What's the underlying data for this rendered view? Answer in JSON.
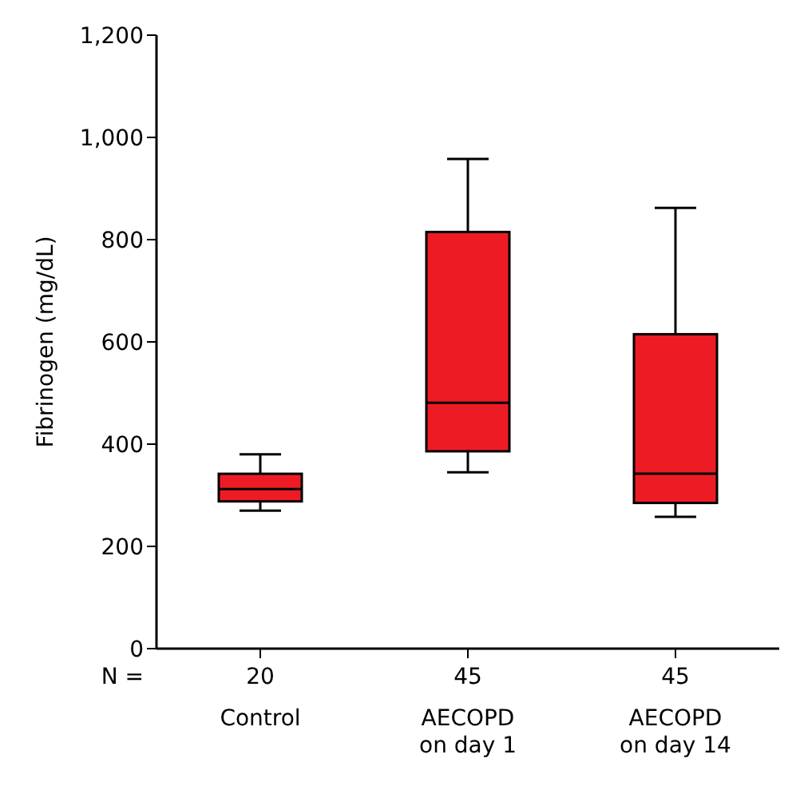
{
  "chart_data": {
    "type": "box",
    "ylabel": "Fibrinogen (mg/dL)",
    "categories": [
      "Control",
      "AECOPD on day 1",
      "AECOPD on day 14"
    ],
    "boxes": [
      {
        "low": 270,
        "q1": 288,
        "median": 312,
        "q3": 342,
        "high": 380
      },
      {
        "low": 345,
        "q1": 386,
        "median": 481,
        "q3": 815,
        "high": 958
      },
      {
        "low": 258,
        "q1": 285,
        "median": 342,
        "q3": 615,
        "high": 862
      }
    ],
    "color": "#ed1c24",
    "ylim": [
      0,
      1200
    ],
    "yticks": [
      {
        "value": 0,
        "label": "0"
      },
      {
        "value": 200,
        "label": "200"
      },
      {
        "value": 400,
        "label": "400"
      },
      {
        "value": 600,
        "label": "600"
      },
      {
        "value": 800,
        "label": "800"
      },
      {
        "value": 1000,
        "label": "1,000"
      },
      {
        "value": 1200,
        "label": "1,200"
      }
    ],
    "grid": false,
    "legend": false,
    "annotations": [
      "N =",
      "20",
      "45",
      "45"
    ]
  }
}
